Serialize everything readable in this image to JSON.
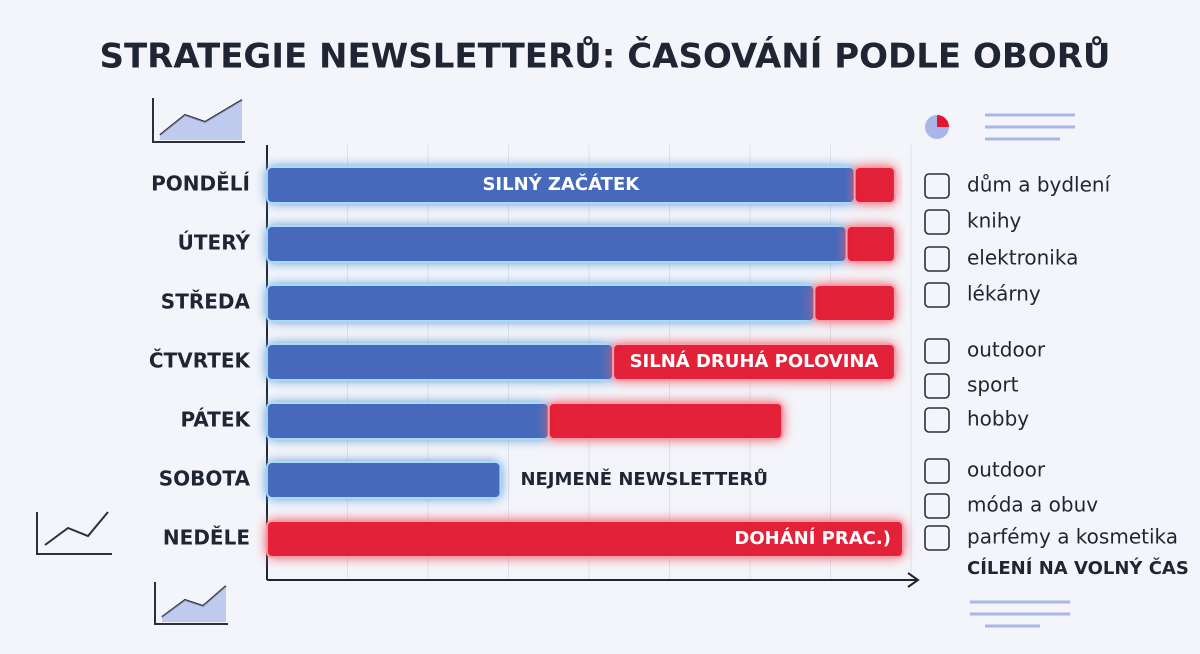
{
  "chart_data": {
    "type": "stacked-bar",
    "orientation": "horizontal",
    "title": "STRATEGIE NEWSLETTERŮ: ČASOVÁNÍ PODLE OBORŮ",
    "categories": [
      "PONDĚLÍ",
      "ÚTERÝ",
      "STŘEDA",
      "ČTVRTEK",
      "PÁTEK",
      "SOBOTA",
      "NEDĚLE"
    ],
    "series": [
      {
        "color": "#3d62b8",
        "values": [
          7.3,
          7.2,
          6.8,
          4.3,
          3.5,
          2.9,
          0
        ]
      },
      {
        "color": "#e3142e",
        "values": [
          0.5,
          0.6,
          1.0,
          3.5,
          2.9,
          0,
          7.9
        ]
      }
    ],
    "bar_labels": [
      "SILNÝ ZAČÁTEK",
      null,
      null,
      "SILNÁ DRUHÁ POLOVINA",
      null,
      "NEJMENĚ NEWSLETTERŮ",
      "DOHÁNÍ PRAC.)"
    ],
    "xlim": [
      0,
      8
    ],
    "xticks": [
      0,
      1,
      2,
      3,
      4,
      5,
      6,
      7,
      8
    ],
    "grid": true,
    "side_groups": [
      [
        "dům a bydlení",
        "knihy",
        "elektronika",
        "lékárny"
      ],
      [
        "outdoor",
        "sport",
        "hobby"
      ],
      [
        "outdoor",
        "móda a obuv",
        "parfémy a kosmetika"
      ]
    ],
    "side_note": "CÍLENÍ NA VOLNÝ ČAS"
  }
}
